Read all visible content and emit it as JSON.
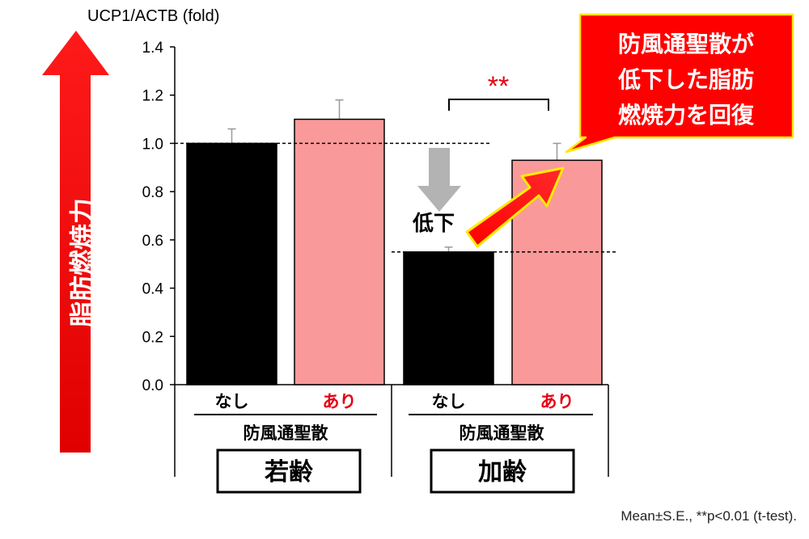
{
  "chart_data": {
    "type": "bar",
    "ylabel": "UCP1/ACTB (fold)",
    "ylim": [
      0,
      1.4
    ],
    "yticks": [
      "0.0",
      "0.2",
      "0.4",
      "0.6",
      "0.8",
      "1.0",
      "1.2",
      "1.4"
    ],
    "categories": [
      "なし",
      "あり",
      "なし",
      "あり"
    ],
    "groups": [
      {
        "name": "若齢",
        "treatment_label": "防風通聖散"
      },
      {
        "name": "加齢",
        "treatment_label": "防風通聖散"
      }
    ],
    "values": [
      1.0,
      1.1,
      0.55,
      0.93
    ],
    "errors": [
      0.06,
      0.08,
      0.02,
      0.07
    ],
    "colors": [
      "#000000",
      "#fa9999",
      "#000000",
      "#fa9999"
    ],
    "significance": "**",
    "decline_label": "低下",
    "side_label": "脂肪燃焼力",
    "callout_lines": [
      "防風通聖散が",
      "低下した脂肪",
      "燃焼力を回復"
    ],
    "footnote": "Mean±S.E., **p<0.01 (t-test)."
  }
}
